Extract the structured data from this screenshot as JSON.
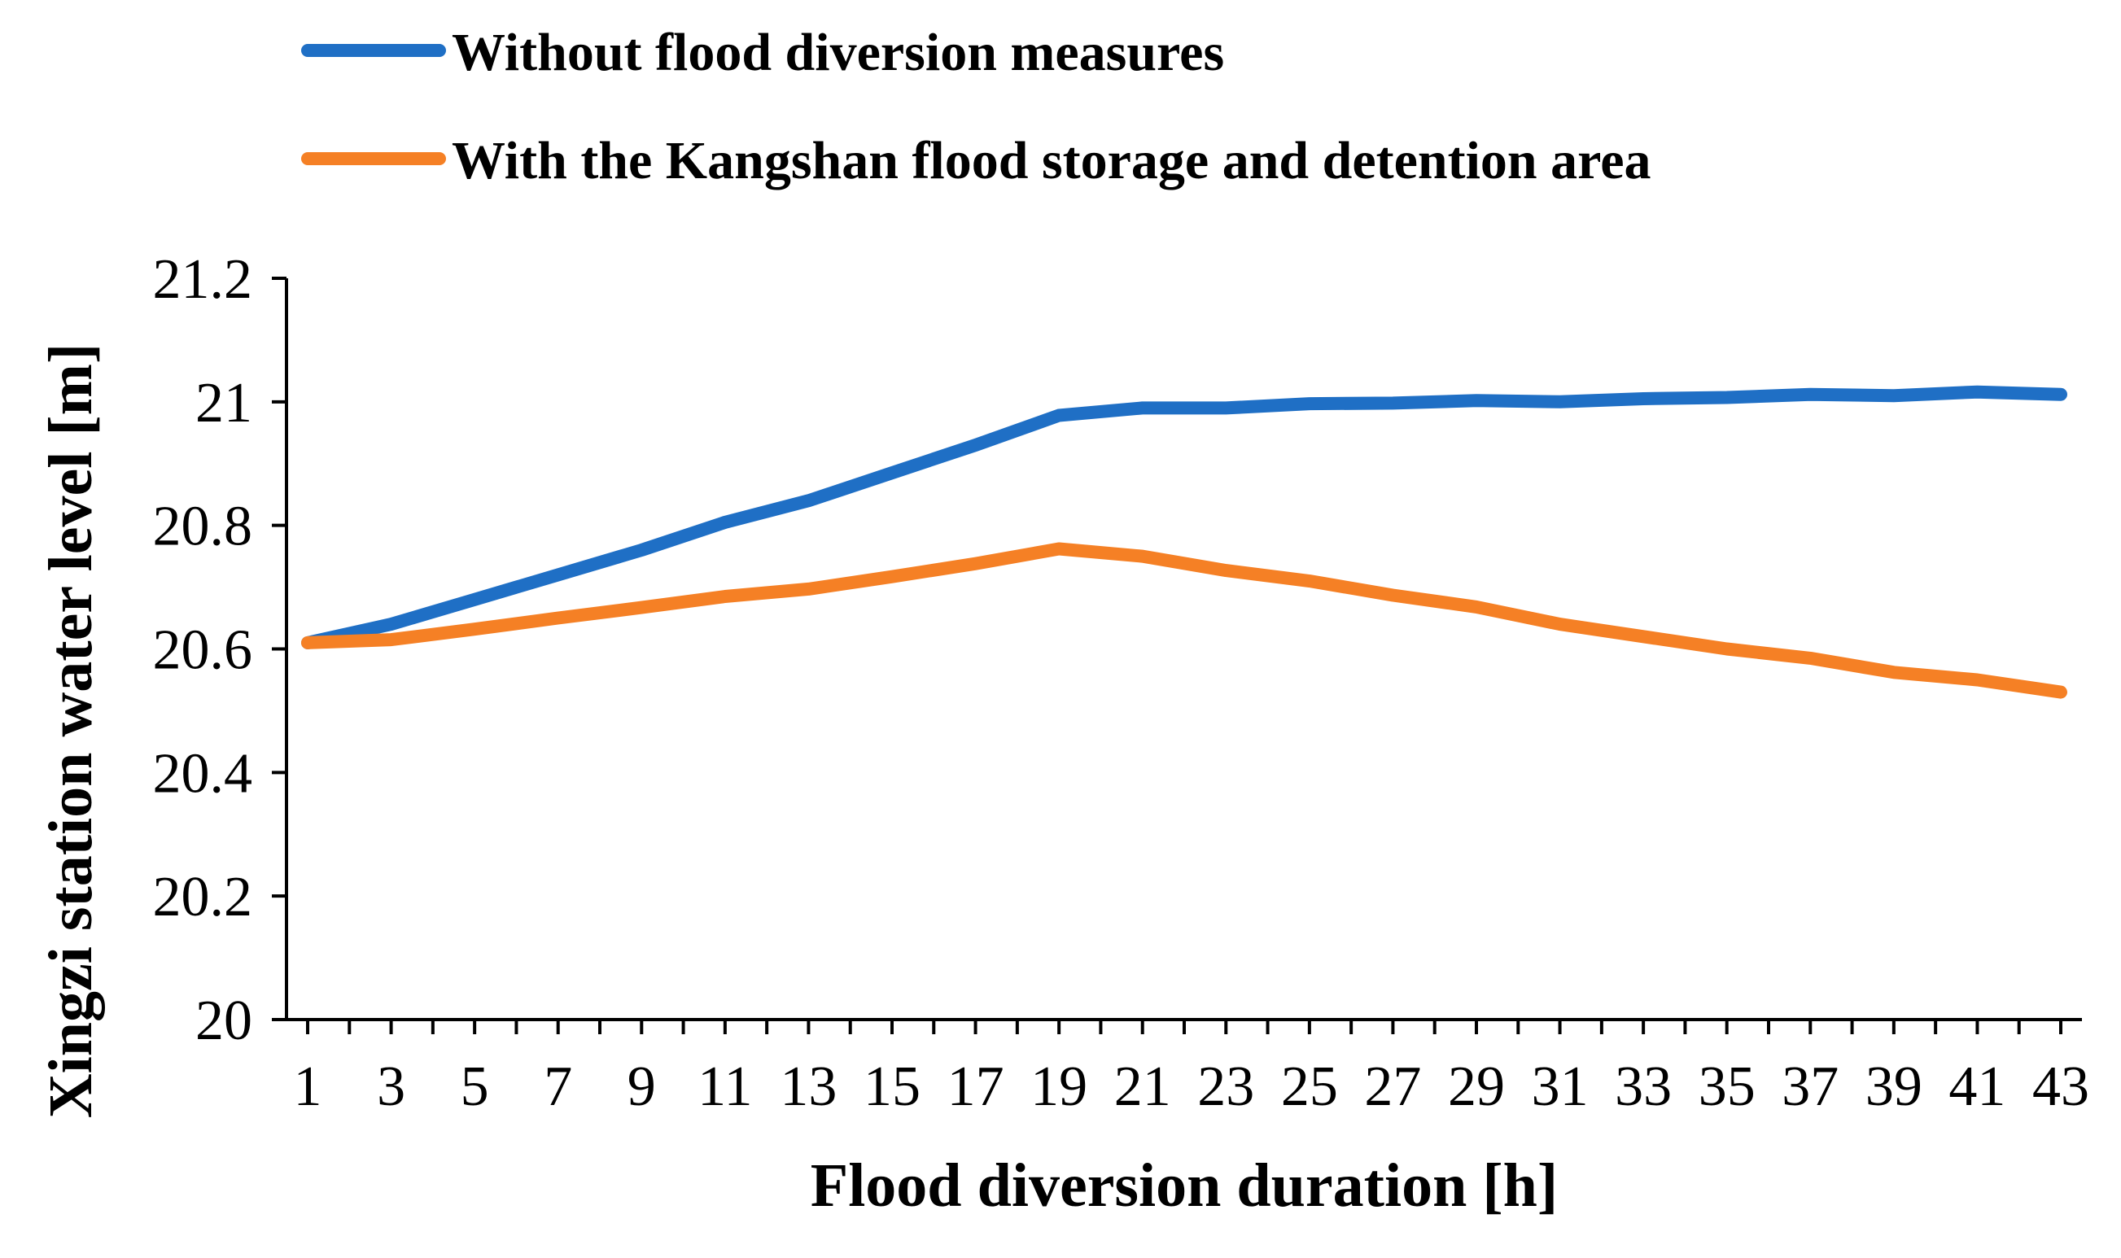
{
  "chart_data": {
    "type": "line",
    "title": "",
    "xlabel": "Flood diversion duration [h]",
    "ylabel": "Xingzi station water level [m]",
    "x": [
      1,
      3,
      5,
      7,
      9,
      11,
      13,
      15,
      17,
      19,
      21,
      23,
      25,
      27,
      29,
      31,
      33,
      35,
      37,
      39,
      41,
      43
    ],
    "x_tick_labels": [
      "1",
      "3",
      "5",
      "7",
      "9",
      "11",
      "13",
      "15",
      "17",
      "19",
      "21",
      "23",
      "25",
      "27",
      "29",
      "31",
      "33",
      "35",
      "37",
      "39",
      "41",
      "43"
    ],
    "y_tick_labels": [
      "20",
      "20.2",
      "20.4",
      "20.6",
      "20.8",
      "21",
      "21.2"
    ],
    "ylim": [
      20,
      21.2
    ],
    "grid": false,
    "legend_position": "top",
    "series": [
      {
        "name": "Without flood diversion measures",
        "color": "#1f6fc5",
        "values": [
          20.61,
          20.64,
          20.68,
          20.72,
          20.76,
          20.805,
          20.84,
          20.885,
          20.93,
          20.978,
          20.99,
          20.99,
          20.997,
          20.998,
          21.002,
          21.0,
          21.005,
          21.007,
          21.012,
          21.01,
          21.016,
          21.012
        ]
      },
      {
        "name": "With the Kangshan flood storage and detention area",
        "color": "#f58025",
        "values": [
          20.61,
          20.615,
          20.632,
          20.65,
          20.667,
          20.685,
          20.697,
          20.717,
          20.738,
          20.762,
          20.75,
          20.727,
          20.71,
          20.687,
          20.668,
          20.64,
          20.62,
          20.6,
          20.585,
          20.562,
          20.55,
          20.53
        ]
      }
    ]
  }
}
